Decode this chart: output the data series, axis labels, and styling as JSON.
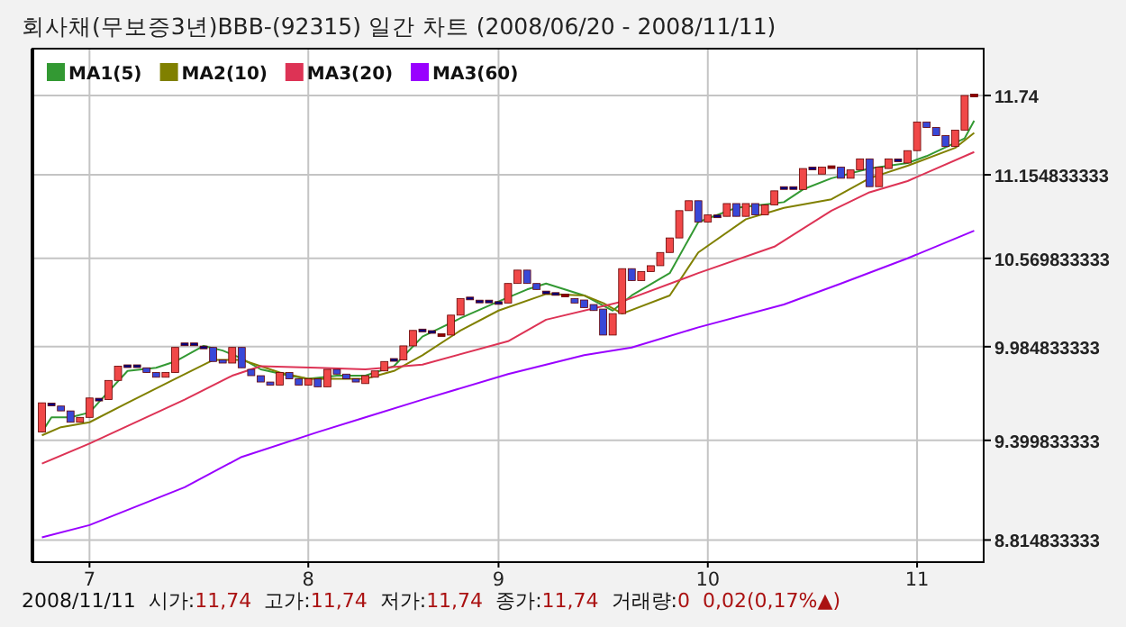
{
  "chart_data": {
    "type": "candlestick",
    "title": "회사채(무보증3년)BBB-(92315) 일간 차트 (2008/06/20 - 2008/11/11)",
    "categories": [
      null,
      null,
      null,
      null,
      null,
      "7",
      null,
      null,
      null,
      null,
      null,
      null,
      null,
      null,
      null,
      null,
      null,
      null,
      null,
      null,
      null,
      null,
      null,
      null,
      null,
      null,
      null,
      null,
      "8",
      null,
      null,
      null,
      null,
      null,
      null,
      null,
      null,
      null,
      null,
      null,
      null,
      null,
      null,
      null,
      null,
      null,
      null,
      null,
      "9",
      null,
      null,
      null,
      null,
      null,
      null,
      null,
      null,
      null,
      null,
      null,
      null,
      null,
      null,
      null,
      null,
      null,
      null,
      null,
      null,
      null,
      "10",
      null,
      null,
      null,
      null,
      null,
      null,
      null,
      null,
      null,
      null,
      null,
      null,
      null,
      null,
      null,
      null,
      null,
      null,
      null,
      null,
      null,
      "11",
      null,
      null,
      null,
      null,
      null,
      null
    ],
    "ohlc": [
      [
        9.45,
        9.63,
        9.45,
        9.63
      ],
      [
        9.62,
        9.62,
        9.62,
        9.62
      ],
      [
        9.61,
        9.61,
        9.58,
        9.58
      ],
      [
        9.58,
        9.58,
        9.51,
        9.51
      ],
      [
        9.51,
        9.54,
        9.51,
        9.54
      ],
      [
        9.54,
        9.66,
        9.54,
        9.66
      ],
      [
        9.65,
        9.65,
        9.65,
        9.65
      ],
      [
        9.65,
        9.77,
        9.65,
        9.77
      ],
      [
        9.77,
        9.86,
        9.77,
        9.86
      ],
      [
        9.86,
        9.86,
        9.86,
        9.86
      ],
      [
        9.86,
        9.86,
        9.86,
        9.86
      ],
      [
        9.85,
        9.85,
        9.82,
        9.82
      ],
      [
        9.82,
        9.82,
        9.79,
        9.79
      ],
      [
        9.79,
        9.82,
        9.79,
        9.82
      ],
      [
        9.82,
        9.98,
        9.82,
        9.98
      ],
      [
        10.0,
        10.0,
        10.0,
        10.0
      ],
      [
        10.0,
        10.0,
        10.0,
        10.0
      ],
      [
        9.98,
        9.98,
        9.98,
        9.98
      ],
      [
        9.98,
        9.98,
        9.89,
        9.89
      ],
      [
        9.9,
        9.9,
        9.88,
        9.88
      ],
      [
        9.88,
        9.98,
        9.88,
        9.98
      ],
      [
        9.98,
        9.98,
        9.85,
        9.85
      ],
      [
        9.84,
        9.84,
        9.8,
        9.8
      ],
      [
        9.8,
        9.8,
        9.76,
        9.76
      ],
      [
        9.76,
        9.76,
        9.74,
        9.74
      ],
      [
        9.74,
        9.82,
        9.74,
        9.82
      ],
      [
        9.82,
        9.82,
        9.78,
        9.78
      ],
      [
        9.78,
        9.78,
        9.74,
        9.74
      ],
      [
        9.74,
        9.78,
        9.74,
        9.78
      ],
      [
        9.78,
        9.78,
        9.73,
        9.73
      ],
      [
        9.73,
        9.84,
        9.73,
        9.84
      ],
      [
        9.84,
        9.84,
        9.81,
        9.81
      ],
      [
        9.81,
        9.81,
        9.78,
        9.78
      ],
      [
        9.78,
        9.78,
        9.76,
        9.76
      ],
      [
        9.75,
        9.8,
        9.75,
        9.8
      ],
      [
        9.79,
        9.83,
        9.79,
        9.83
      ],
      [
        9.83,
        9.89,
        9.83,
        9.89
      ],
      [
        9.9,
        9.9,
        9.9,
        9.9
      ],
      [
        9.9,
        9.99,
        9.9,
        9.99
      ],
      [
        9.99,
        10.09,
        9.99,
        10.09
      ],
      [
        10.09,
        10.09,
        10.09,
        10.09
      ],
      [
        10.08,
        10.08,
        10.08,
        10.08
      ],
      [
        10.06,
        10.06,
        10.06,
        10.06
      ],
      [
        10.06,
        10.19,
        10.06,
        10.19
      ],
      [
        10.19,
        10.3,
        10.19,
        10.3
      ],
      [
        10.3,
        10.3,
        10.3,
        10.3
      ],
      [
        10.28,
        10.28,
        10.28,
        10.28
      ],
      [
        10.28,
        10.28,
        10.28,
        10.28
      ],
      [
        10.27,
        10.27,
        10.27,
        10.27
      ],
      [
        10.27,
        10.4,
        10.27,
        10.4
      ],
      [
        10.4,
        10.49,
        10.4,
        10.49
      ],
      [
        10.49,
        10.49,
        10.4,
        10.4
      ],
      [
        10.4,
        10.4,
        10.36,
        10.36
      ],
      [
        10.34,
        10.34,
        10.34,
        10.34
      ],
      [
        10.33,
        10.33,
        10.33,
        10.33
      ],
      [
        10.32,
        10.32,
        10.32,
        10.32
      ],
      [
        10.3,
        10.3,
        10.27,
        10.27
      ],
      [
        10.29,
        10.29,
        10.24,
        10.24
      ],
      [
        10.26,
        10.26,
        10.22,
        10.22
      ],
      [
        10.23,
        10.23,
        10.06,
        10.06
      ],
      [
        10.06,
        10.2,
        10.06,
        10.2
      ],
      [
        10.2,
        10.5,
        10.2,
        10.5
      ],
      [
        10.5,
        10.5,
        10.42,
        10.42
      ],
      [
        10.42,
        10.48,
        10.42,
        10.48
      ],
      [
        10.48,
        10.52,
        10.48,
        10.52
      ],
      [
        10.52,
        10.61,
        10.52,
        10.61
      ],
      [
        10.61,
        10.71,
        10.61,
        10.71
      ],
      [
        10.71,
        10.9,
        10.71,
        10.9
      ],
      [
        10.9,
        10.97,
        10.9,
        10.97
      ],
      [
        10.97,
        10.97,
        10.82,
        10.82
      ],
      [
        10.82,
        10.87,
        10.82,
        10.87
      ],
      [
        10.86,
        10.86,
        10.86,
        10.86
      ],
      [
        10.86,
        10.95,
        10.86,
        10.95
      ],
      [
        10.95,
        10.95,
        10.86,
        10.86
      ],
      [
        10.86,
        10.95,
        10.86,
        10.95
      ],
      [
        10.95,
        10.95,
        10.87,
        10.87
      ],
      [
        10.87,
        10.94,
        10.87,
        10.94
      ],
      [
        10.94,
        11.04,
        10.94,
        11.04
      ],
      [
        11.06,
        11.06,
        11.06,
        11.06
      ],
      [
        11.06,
        11.06,
        11.06,
        11.06
      ],
      [
        11.05,
        11.2,
        11.05,
        11.2
      ],
      [
        11.2,
        11.2,
        11.2,
        11.2
      ],
      [
        11.16,
        11.21,
        11.16,
        11.21
      ],
      [
        11.21,
        11.21,
        11.21,
        11.21
      ],
      [
        11.21,
        11.21,
        11.13,
        11.13
      ],
      [
        11.13,
        11.19,
        11.13,
        11.19
      ],
      [
        11.19,
        11.27,
        11.19,
        11.27
      ],
      [
        11.27,
        11.27,
        11.07,
        11.07
      ],
      [
        11.07,
        11.21,
        11.07,
        11.21
      ],
      [
        11.2,
        11.27,
        11.2,
        11.27
      ],
      [
        11.26,
        11.26,
        11.26,
        11.26
      ],
      [
        11.24,
        11.33,
        11.24,
        11.33
      ],
      [
        11.33,
        11.54,
        11.33,
        11.54
      ],
      [
        11.54,
        11.54,
        11.5,
        11.5
      ],
      [
        11.5,
        11.5,
        11.44,
        11.44
      ],
      [
        11.44,
        11.44,
        11.36,
        11.36
      ],
      [
        11.36,
        11.48,
        11.36,
        11.48
      ],
      [
        11.48,
        11.74,
        11.48,
        11.74
      ],
      [
        11.74,
        11.74,
        11.74,
        11.74
      ]
    ],
    "colors": [
      "#f04848",
      "#000080",
      "#3848d8",
      "#3848d8",
      "#f04848",
      "#f04848",
      "#000080",
      "#f04848",
      "#f04848",
      "#000080",
      "#000080",
      "#3848d8",
      "#3848d8",
      "#f04848",
      "#f04848",
      "#000080",
      "#000080",
      "#000080",
      "#3848d8",
      "#3848d8",
      "#f04848",
      "#3848d8",
      "#3848d8",
      "#3848d8",
      "#3848d8",
      "#f04848",
      "#3848d8",
      "#3848d8",
      "#f04848",
      "#3848d8",
      "#f04848",
      "#3848d8",
      "#3848d8",
      "#3848d8",
      "#f04848",
      "#f04848",
      "#f04848",
      "#000080",
      "#f04848",
      "#f04848",
      "#000080",
      "#000080",
      "#900000",
      "#f04848",
      "#f04848",
      "#000080",
      "#000080",
      "#000080",
      "#000080",
      "#f04848",
      "#f04848",
      "#3848d8",
      "#3848d8",
      "#000080",
      "#000080",
      "#900000",
      "#3848d8",
      "#3848d8",
      "#3848d8",
      "#3848d8",
      "#f04848",
      "#f04848",
      "#3848d8",
      "#f04848",
      "#f04848",
      "#f04848",
      "#f04848",
      "#f04848",
      "#f04848",
      "#3848d8",
      "#f04848",
      "#000080",
      "#f04848",
      "#3848d8",
      "#f04848",
      "#3848d8",
      "#f04848",
      "#f04848",
      "#000080",
      "#000080",
      "#f04848",
      "#000080",
      "#f04848",
      "#900000",
      "#3848d8",
      "#f04848",
      "#f04848",
      "#3848d8",
      "#f04848",
      "#f04848",
      "#000080",
      "#f04848",
      "#f04848",
      "#3848d8",
      "#3848d8",
      "#3848d8",
      "#f04848",
      "#f04848",
      "#900000"
    ],
    "series": [
      {
        "name": "MA1(5)",
        "type": "line",
        "color": "#339933",
        "values": [
          9.45,
          9.54,
          null,
          9.54,
          null,
          9.57,
          null,
          9.7,
          null,
          9.83,
          null,
          null,
          9.85,
          null,
          9.89,
          null,
          null,
          9.99,
          null,
          9.96,
          null,
          9.91,
          null,
          9.84,
          null,
          null,
          9.8,
          null,
          9.78,
          null,
          null,
          9.8,
          null,
          null,
          9.8,
          null,
          null,
          9.86,
          null,
          null,
          10.05,
          null,
          null,
          null,
          10.17,
          null,
          null,
          null,
          10.28,
          null,
          null,
          10.36,
          null,
          10.4,
          null,
          null,
          null,
          10.32,
          null,
          null,
          10.22,
          null,
          10.32,
          null,
          null,
          null,
          10.47,
          null,
          null,
          10.82,
          null,
          null,
          null,
          10.92,
          null,
          null,
          null,
          null,
          10.96,
          null,
          11.05,
          null,
          null,
          11.13,
          null,
          null,
          null,
          11.2,
          null,
          null,
          null,
          11.24,
          null,
          11.29,
          null,
          null,
          null,
          11.42,
          11.55
        ]
      },
      {
        "name": "MA2(10)",
        "type": "line",
        "color": "#808000",
        "values": [
          9.43,
          null,
          9.48,
          null,
          null,
          9.51,
          null,
          null,
          null,
          9.63,
          null,
          null,
          null,
          null,
          9.78,
          null,
          null,
          null,
          9.9,
          null,
          null,
          9.9,
          null,
          null,
          null,
          9.82,
          null,
          null,
          9.78,
          null,
          null,
          null,
          null,
          null,
          9.78,
          null,
          null,
          9.83,
          null,
          null,
          9.93,
          null,
          null,
          null,
          10.09,
          null,
          null,
          null,
          10.22,
          null,
          null,
          null,
          null,
          10.33,
          null,
          null,
          null,
          10.32,
          null,
          10.27,
          null,
          10.2,
          null,
          null,
          null,
          null,
          10.32,
          null,
          null,
          10.61,
          null,
          null,
          null,
          null,
          10.84,
          null,
          null,
          null,
          10.92,
          null,
          null,
          null,
          null,
          10.98,
          null,
          null,
          null,
          11.13,
          null,
          null,
          null,
          11.22,
          null,
          null,
          null,
          null,
          11.35,
          null,
          11.46
        ]
      },
      {
        "name": "MA3(20)",
        "type": "line",
        "color": "#dd3355",
        "values": [
          9.26,
          null,
          null,
          null,
          null,
          9.38,
          null,
          null,
          null,
          null,
          null,
          null,
          null,
          null,
          null,
          9.65,
          null,
          null,
          null,
          null,
          9.8,
          null,
          null,
          9.86,
          null,
          null,
          null,
          null,
          null,
          9.85,
          null,
          null,
          null,
          null,
          9.84,
          null,
          null,
          null,
          null,
          null,
          9.87,
          null,
          null,
          null,
          null,
          null,
          null,
          null,
          null,
          10.02,
          null,
          null,
          null,
          10.16,
          null,
          null,
          null,
          null,
          null,
          null,
          null,
          10.28,
          null,
          null,
          null,
          null,
          null,
          null,
          null,
          10.47,
          null,
          null,
          null,
          null,
          null,
          null,
          null,
          10.65,
          null,
          null,
          null,
          null,
          null,
          10.9,
          null,
          null,
          null,
          11.03,
          null,
          null,
          null,
          11.11,
          null,
          null,
          null,
          null,
          null,
          null,
          11.32
        ]
      },
      {
        "name": "MA3(60)",
        "type": "line",
        "color": "#9900ff",
        "values": [
          8.83,
          null,
          null,
          null,
          null,
          8.9,
          null,
          null,
          null,
          null,
          null,
          null,
          null,
          null,
          null,
          9.12,
          null,
          null,
          null,
          null,
          null,
          9.3,
          null,
          null,
          null,
          null,
          null,
          null,
          null,
          9.45,
          null,
          null,
          null,
          null,
          9.54,
          null,
          null,
          null,
          null,
          null,
          9.65,
          null,
          null,
          null,
          null,
          null,
          null,
          null,
          null,
          9.81,
          null,
          null,
          null,
          9.87,
          null,
          null,
          null,
          9.93,
          null,
          null,
          null,
          null,
          9.98,
          null,
          null,
          null,
          null,
          null,
          null,
          10.11,
          null,
          null,
          null,
          null,
          null,
          null,
          null,
          null,
          10.26,
          null,
          null,
          null,
          null,
          null,
          10.4,
          null,
          null,
          null,
          null,
          null,
          null,
          10.57,
          null,
          null,
          null,
          null,
          null,
          null,
          10.76
        ]
      }
    ],
    "ylim": [
      8.69,
      12.1
    ],
    "yticks": [
      8.814833333,
      9.399833333,
      9.984833333,
      10.569833333,
      11.154833333,
      11.74
    ],
    "log": true,
    "grid": true,
    "legend": "top left",
    "annotations": [
      "2008/11/11",
      "시가:11,74",
      "고가:11,74",
      "저가:11,74",
      "종가:11,74",
      "거래량:0",
      "0,02(0,17%▲)"
    ]
  }
}
